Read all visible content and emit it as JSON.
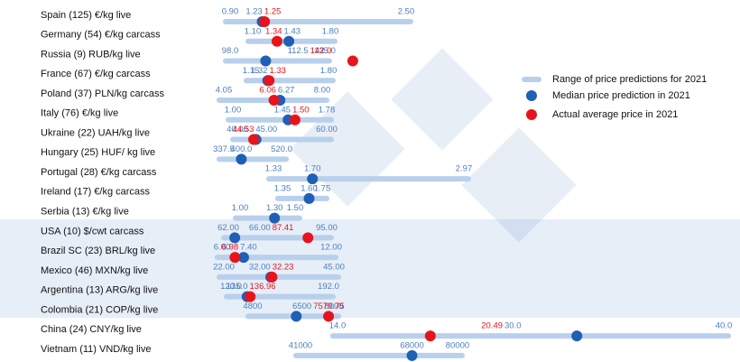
{
  "chart_data": {
    "type": "range",
    "categories": [
      "Spain (125) €/kg live",
      "Germany (54) €/kg carcass",
      "Russia (9) RUB/kg live",
      "France (67) €/kg carcass",
      "Poland (37) PLN/kg carcass",
      "Italy (76) €/kg live",
      "Ukraine (22) UAH/kg live",
      "Hungary (25) HUF/ kg live",
      "Portugal (28) €/kg carcass",
      "Ireland (17) €/kg carcass",
      "Serbia (13) €/kg live",
      "USA (10) $/cwt carcass",
      "Brazil SC (23) BRL/kg live",
      "Mexico (46) MXN/kg live",
      "Argentina (13) ARG/kg live",
      "Colombia (21) COP/kg live",
      "China (24) CNY/kg live",
      "Vietnam (11) VND/kg live"
    ],
    "series": [
      {
        "name": "Range of price predictions for 2021",
        "color": "#b8d0ec",
        "values": [
          [
            0.9,
            2.5
          ],
          [
            1.1,
            1.8
          ],
          [
            98,
            135
          ],
          [
            1.15,
            1.8
          ],
          [
            4.05,
            8
          ],
          [
            1,
            1.78
          ],
          [
            40,
            60
          ],
          [
            337.5,
            520
          ],
          [
            1.33,
            2.97
          ],
          [
            1.35,
            1.75
          ],
          [
            1,
            1.5
          ],
          [
            62,
            95
          ],
          [
            6,
            12
          ],
          [
            22,
            45
          ],
          [
            120,
            192
          ],
          [
            4800,
            8000
          ],
          [
            14,
            40
          ],
          [
            41000,
            80000
          ]
        ],
        "value_labels": [
          [
            "0.90",
            "2.50"
          ],
          [
            "1.10",
            "1.80"
          ],
          [
            "98.0",
            "135.0"
          ],
          [
            "1.15",
            "1.80"
          ],
          [
            "4.05",
            "8.00"
          ],
          [
            "1.00",
            "1.78"
          ],
          [
            "40.00",
            "60.00"
          ],
          [
            "337.5",
            "520.0"
          ],
          [
            "1.33",
            "2.97"
          ],
          [
            "1.35",
            "1.75"
          ],
          [
            "1.00",
            "1.50"
          ],
          [
            "62.00",
            "95.00"
          ],
          [
            "6.00",
            "12.00"
          ],
          [
            "22.00",
            "45.00"
          ],
          [
            "120.0",
            "192.0"
          ],
          [
            "4800",
            "8000"
          ],
          [
            "14.0",
            "40.0"
          ],
          [
            "41000",
            "80000"
          ]
        ]
      },
      {
        "name": "Median price prediction in 2021",
        "color": "#1f5fb5",
        "values": [
          1.23,
          1.43,
          112.5,
          1.32,
          6.27,
          1.45,
          45,
          400,
          1.7,
          1.6,
          1.3,
          66,
          7.4,
          32,
          135,
          6500,
          30,
          68000
        ],
        "value_labels": [
          "1.23",
          "1.43",
          "112.5",
          "1.32",
          "6.27",
          "1.45",
          "45.00",
          "400.0",
          "1.70",
          "1.60",
          "1.30",
          "66.00",
          "7.40",
          "32.00",
          "135.0",
          "6500",
          "30.0",
          "68000"
        ]
      },
      {
        "name": "Actual average price in 2021",
        "color": "#e8141c",
        "values": [
          1.25,
          1.34,
          142,
          1.33,
          6.06,
          1.5,
          44.53,
          null,
          null,
          null,
          null,
          87.41,
          6.98,
          32.23,
          136.96,
          7579.75,
          20.49,
          null
        ],
        "value_labels": [
          "1.25",
          "1.34",
          "142.0",
          "1.33",
          "6.06",
          "1.50",
          "44.53",
          null,
          null,
          null,
          null,
          "87.41",
          "6.98",
          "32.23",
          "136.96",
          "7579.75",
          "20.49",
          null
        ]
      }
    ]
  }
}
